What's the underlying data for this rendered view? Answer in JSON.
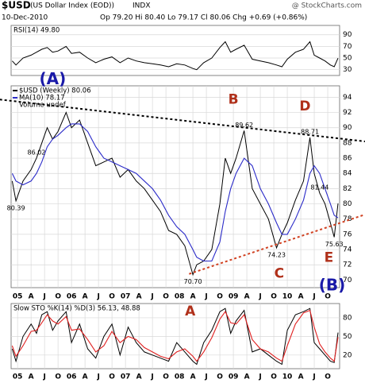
{
  "header": {
    "symbol": "$USD",
    "name": "(US Dollar Index (EOD))",
    "exchange": "INDX",
    "watermark": "@ StockCharts.com",
    "date": "10-Dec-2010",
    "quote": "Op 79.20 Hi 80.40 Lo 79.17 Cl 80.06 Chg +0.69 (+0.86%)"
  },
  "chart_data": [
    {
      "type": "line",
      "title": "RSI(14) 49.80",
      "x": [
        2004.9,
        2004.97,
        2005.1,
        2005.25,
        2005.35,
        2005.45,
        2005.55,
        2005.65,
        2005.75,
        2005.9,
        2006.0,
        2006.15,
        2006.3,
        2006.45,
        2006.6,
        2006.75,
        2006.9,
        2007.05,
        2007.2,
        2007.35,
        2007.5,
        2007.65,
        2007.8,
        2007.95,
        2008.1,
        2008.25,
        2008.32,
        2008.45,
        2008.6,
        2008.75,
        2008.85,
        2008.95,
        2009.05,
        2009.2,
        2009.35,
        2009.5,
        2009.65,
        2009.8,
        2009.9,
        2010.0,
        2010.15,
        2010.3,
        2010.42,
        2010.5,
        2010.6,
        2010.7,
        2010.8,
        2010.87,
        2010.94
      ],
      "series": [
        {
          "color": "#000000",
          "values": [
            45,
            38,
            50,
            55,
            60,
            65,
            68,
            60,
            62,
            70,
            58,
            60,
            50,
            42,
            48,
            52,
            42,
            50,
            45,
            42,
            40,
            38,
            35,
            40,
            38,
            32,
            30,
            42,
            50,
            68,
            78,
            60,
            65,
            72,
            48,
            45,
            42,
            38,
            35,
            48,
            60,
            65,
            78,
            55,
            50,
            45,
            38,
            35,
            49.8
          ]
        }
      ],
      "xlim": [
        2004.88,
        2010.97
      ],
      "ylim": [
        20,
        106
      ],
      "yticks": [
        30,
        50,
        70,
        90
      ],
      "grid": true
    },
    {
      "type": "line",
      "legend": "top-left",
      "volume_label": "Volume undef",
      "x": [
        2004.9,
        2004.97,
        2005.1,
        2005.25,
        2005.35,
        2005.45,
        2005.55,
        2005.65,
        2005.75,
        2005.9,
        2006.0,
        2006.15,
        2006.3,
        2006.45,
        2006.6,
        2006.75,
        2006.9,
        2007.05,
        2007.2,
        2007.35,
        2007.5,
        2007.65,
        2007.8,
        2007.95,
        2008.1,
        2008.25,
        2008.32,
        2008.45,
        2008.6,
        2008.75,
        2008.85,
        2008.95,
        2009.05,
        2009.2,
        2009.35,
        2009.5,
        2009.65,
        2009.8,
        2009.9,
        2010.0,
        2010.15,
        2010.3,
        2010.42,
        2010.5,
        2010.6,
        2010.7,
        2010.8,
        2010.87,
        2010.94
      ],
      "series": [
        {
          "name": "$USD (Weekly) 80.06",
          "color": "#000000",
          "values": [
            83,
            80.39,
            83,
            84.5,
            86.02,
            88,
            90,
            88.5,
            89.5,
            92,
            90,
            91,
            88,
            85,
            85.5,
            86,
            83.5,
            84.5,
            83,
            82,
            80.5,
            79,
            76.5,
            76,
            74.5,
            70.7,
            72,
            72.5,
            74,
            80,
            86,
            84,
            86,
            89.62,
            82,
            80,
            78,
            74.23,
            76,
            77.5,
            80.5,
            83,
            88.71,
            84,
            81.44,
            80,
            77.5,
            75.63,
            80.06
          ]
        },
        {
          "name": "MA(10) 78.17",
          "color": "#2a2ac8",
          "values": [
            84,
            83,
            82.5,
            83,
            84,
            85.5,
            87.5,
            88.5,
            89,
            90,
            90.5,
            90.5,
            89.5,
            87.5,
            86,
            85.5,
            85,
            84.5,
            84,
            83,
            82,
            80.5,
            78.5,
            77,
            76,
            74,
            73,
            72.5,
            72.5,
            75,
            79,
            82,
            84,
            86,
            85,
            82,
            80,
            77.5,
            76,
            76,
            78,
            80.5,
            84,
            85,
            84,
            82,
            80,
            78.5,
            78.17
          ]
        }
      ],
      "annotations": [
        {
          "label": "80.39",
          "x": 2004.97,
          "y": 80.39
        },
        {
          "label": "86.02",
          "x": 2005.35,
          "y": 86.02
        },
        {
          "label": "89.62",
          "x": 2009.2,
          "y": 89.62
        },
        {
          "label": "88.71",
          "x": 2010.42,
          "y": 88.71
        },
        {
          "label": "81.44",
          "x": 2010.6,
          "y": 81.44
        },
        {
          "label": "74.23",
          "x": 2009.8,
          "y": 74.23
        },
        {
          "label": "75.63",
          "x": 2010.87,
          "y": 75.63
        },
        {
          "label": "70.70",
          "x": 2008.25,
          "y": 70.7
        }
      ],
      "waves": [
        {
          "text": "(A)",
          "x": 2005.65,
          "y": 96.3,
          "color": "#1a1aa8"
        },
        {
          "text": "B",
          "x": 2009.0,
          "y": 93.7,
          "color": "#b0301a"
        },
        {
          "text": "D",
          "x": 2010.33,
          "y": 92.8,
          "color": "#b0301a"
        },
        {
          "text": "C",
          "x": 2009.85,
          "y": 70.8,
          "color": "#b0301a"
        },
        {
          "text": "E",
          "x": 2010.77,
          "y": 72.9,
          "color": "#b0301a"
        },
        {
          "text": "(B)",
          "x": 2010.83,
          "y": 69.2,
          "color": "#1a1aa8"
        }
      ],
      "trendlines": [
        {
          "color": "#000000",
          "x": [
            2004.67,
            2011.44
          ],
          "y": [
            93.7,
            88.2
          ]
        },
        {
          "color": "#d04020",
          "x": [
            2008.18,
            2011.44
          ],
          "y": [
            70.8,
            78.6
          ]
        }
      ],
      "xlim": [
        2004.88,
        2010.97
      ],
      "ylim": [
        69,
        95.5
      ],
      "yticks": [
        70,
        72,
        74,
        76,
        78,
        80,
        82,
        84,
        86,
        88,
        90,
        92,
        94
      ],
      "grid": true,
      "xticks": [
        {
          "value": 2005,
          "label": "05"
        },
        {
          "value": 2005.25,
          "label": "A"
        },
        {
          "value": 2005.5,
          "label": "J"
        },
        {
          "value": 2005.75,
          "label": "O"
        },
        {
          "value": 2006,
          "label": "06"
        },
        {
          "value": 2006.25,
          "label": "A"
        },
        {
          "value": 2006.5,
          "label": "J"
        },
        {
          "value": 2006.75,
          "label": "O"
        },
        {
          "value": 2007,
          "label": "07"
        },
        {
          "value": 2007.25,
          "label": "A"
        },
        {
          "value": 2007.5,
          "label": "J"
        },
        {
          "value": 2007.75,
          "label": "O"
        },
        {
          "value": 2008,
          "label": "08"
        },
        {
          "value": 2008.25,
          "label": "A"
        },
        {
          "value": 2008.5,
          "label": "J"
        },
        {
          "value": 2008.75,
          "label": "O"
        },
        {
          "value": 2009,
          "label": "09"
        },
        {
          "value": 2009.25,
          "label": "A"
        },
        {
          "value": 2009.5,
          "label": "J"
        },
        {
          "value": 2009.75,
          "label": "O"
        },
        {
          "value": 2010,
          "label": "10"
        },
        {
          "value": 2010.25,
          "label": "A"
        },
        {
          "value": 2010.5,
          "label": "J"
        },
        {
          "value": 2010.75,
          "label": "O"
        }
      ]
    },
    {
      "type": "line",
      "title": "Slow STO %K(14) %D(3) 56.13, 48.88",
      "x": [
        2004.9,
        2004.97,
        2005.1,
        2005.25,
        2005.35,
        2005.45,
        2005.55,
        2005.65,
        2005.75,
        2005.9,
        2006.0,
        2006.15,
        2006.3,
        2006.45,
        2006.6,
        2006.75,
        2006.9,
        2007.05,
        2007.2,
        2007.35,
        2007.5,
        2007.65,
        2007.8,
        2007.95,
        2008.1,
        2008.25,
        2008.32,
        2008.45,
        2008.6,
        2008.75,
        2008.85,
        2008.95,
        2009.05,
        2009.2,
        2009.35,
        2009.5,
        2009.65,
        2009.8,
        2009.9,
        2010.0,
        2010.15,
        2010.3,
        2010.42,
        2010.5,
        2010.6,
        2010.7,
        2010.8,
        2010.87,
        2010.94
      ],
      "series": [
        {
          "color": "#000000",
          "values": [
            30,
            10,
            50,
            70,
            55,
            85,
            90,
            60,
            75,
            90,
            40,
            70,
            30,
            15,
            50,
            70,
            20,
            65,
            40,
            25,
            20,
            15,
            10,
            40,
            25,
            10,
            5,
            40,
            60,
            90,
            95,
            55,
            75,
            92,
            25,
            30,
            20,
            10,
            5,
            60,
            85,
            90,
            95,
            40,
            30,
            20,
            10,
            8,
            56.13
          ]
        },
        {
          "color": "#e02020",
          "values": [
            35,
            18,
            35,
            58,
            60,
            72,
            85,
            75,
            70,
            82,
            60,
            62,
            45,
            25,
            35,
            58,
            40,
            50,
            45,
            32,
            25,
            18,
            14,
            25,
            30,
            18,
            10,
            25,
            48,
            78,
            90,
            72,
            70,
            85,
            45,
            30,
            25,
            15,
            10,
            35,
            70,
            88,
            92,
            65,
            38,
            25,
            15,
            10,
            48.88
          ]
        }
      ],
      "waves": [
        {
          "text": "A",
          "x": 2008.2,
          "y": 90,
          "color": "#b0301a"
        }
      ],
      "xlim": [
        2004.88,
        2010.97
      ],
      "ylim": [
        -2,
        103
      ],
      "yticks": [
        20,
        50,
        80
      ],
      "grid": true,
      "xticks": [
        {
          "value": 2005,
          "label": "05"
        },
        {
          "value": 2005.25,
          "label": "A"
        },
        {
          "value": 2005.5,
          "label": "J"
        },
        {
          "value": 2005.75,
          "label": "O"
        },
        {
          "value": 2006,
          "label": "06"
        },
        {
          "value": 2006.25,
          "label": "A"
        },
        {
          "value": 2006.5,
          "label": "J"
        },
        {
          "value": 2006.75,
          "label": "O"
        },
        {
          "value": 2007,
          "label": "07"
        },
        {
          "value": 2007.25,
          "label": "A"
        },
        {
          "value": 2007.5,
          "label": "J"
        },
        {
          "value": 2007.75,
          "label": "O"
        },
        {
          "value": 2008,
          "label": "08"
        },
        {
          "value": 2008.25,
          "label": "A"
        },
        {
          "value": 2008.5,
          "label": "J"
        },
        {
          "value": 2008.75,
          "label": "O"
        },
        {
          "value": 2009,
          "label": "09"
        },
        {
          "value": 2009.25,
          "label": "A"
        },
        {
          "value": 2009.5,
          "label": "J"
        },
        {
          "value": 2009.75,
          "label": "O"
        },
        {
          "value": 2010,
          "label": "10"
        },
        {
          "value": 2010.25,
          "label": "A"
        },
        {
          "value": 2010.5,
          "label": "J"
        },
        {
          "value": 2010.75,
          "label": "O"
        }
      ]
    }
  ]
}
